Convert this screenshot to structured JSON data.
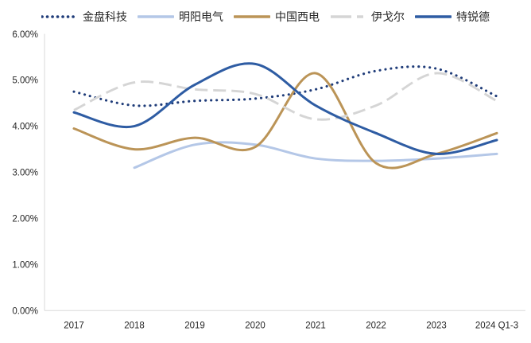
{
  "chart_data": {
    "type": "line",
    "title": "",
    "legend_position": "top",
    "grid": false,
    "smoothed": true,
    "categories": [
      "2017",
      "2018",
      "2019",
      "2020",
      "2021",
      "2022",
      "2023",
      "2024 Q1-3"
    ],
    "y_axis": {
      "min": 0,
      "max": 6,
      "step": 1,
      "tick_labels": [
        "0.00%",
        "1.00%",
        "2.00%",
        "3.00%",
        "4.00%",
        "5.00%",
        "6.00%"
      ],
      "unit": "percent"
    },
    "axis_color": "#D9D9D9",
    "series": [
      {
        "name": "金盘科技",
        "style": "dotted",
        "color": "#1F3C79",
        "values": [
          4.75,
          4.45,
          4.55,
          4.6,
          4.8,
          5.2,
          5.25,
          4.65
        ]
      },
      {
        "name": "明阳电气",
        "style": "solid",
        "color": "#B4C7E7",
        "values": [
          null,
          3.1,
          3.6,
          3.6,
          3.3,
          3.25,
          3.3,
          3.4
        ]
      },
      {
        "name": "中国西电",
        "style": "solid",
        "color": "#BB9457",
        "values": [
          3.95,
          3.5,
          3.75,
          3.55,
          5.15,
          3.2,
          3.4,
          3.85
        ]
      },
      {
        "name": "伊戈尔",
        "style": "dashed",
        "color": "#D5D5D5",
        "values": [
          4.35,
          4.95,
          4.8,
          4.7,
          4.15,
          4.45,
          5.15,
          4.55
        ]
      },
      {
        "name": "特锐德",
        "style": "solid",
        "color": "#2E5CA3",
        "values": [
          4.3,
          4.0,
          4.9,
          5.35,
          4.45,
          3.85,
          3.4,
          3.7
        ]
      }
    ]
  }
}
